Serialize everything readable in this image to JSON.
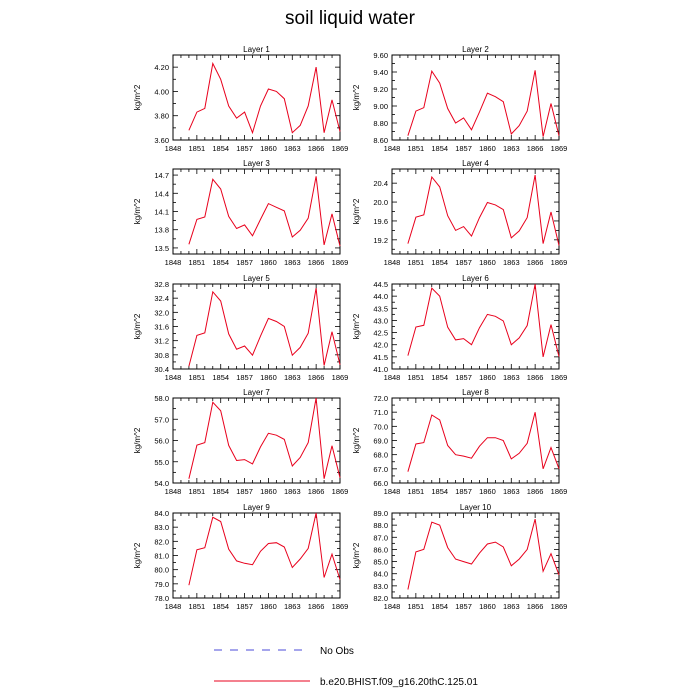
{
  "title": "soil liquid water",
  "colors": {
    "model_line": "#e8001c",
    "obs_line": "#4b4bd8",
    "axis": "#000000"
  },
  "legend": {
    "obs_label": "No Obs",
    "model_label": "b.e20.BHIST.f09_g16.20thC.125.01"
  },
  "chart_data": [
    {
      "type": "line",
      "title": "Layer 1",
      "ylabel": "kg/m^2",
      "xlim": [
        1848,
        1869
      ],
      "ylim": [
        3.6,
        4.3
      ],
      "x_ticks": [
        "1848",
        "1851",
        "1854",
        "1857",
        "1860",
        "1863",
        "1866",
        "1869"
      ],
      "y_ticks": [
        "3.60",
        "3.80",
        "4.00",
        "4.20"
      ],
      "x": [
        1850,
        1851,
        1852,
        1853,
        1854,
        1855,
        1856,
        1857,
        1858,
        1859,
        1860,
        1861,
        1862,
        1863,
        1864,
        1865,
        1866,
        1867,
        1868,
        1869
      ],
      "values": [
        3.68,
        3.83,
        3.86,
        4.23,
        4.1,
        3.88,
        3.78,
        3.83,
        3.66,
        3.88,
        4.02,
        4.0,
        3.94,
        3.66,
        3.72,
        3.88,
        4.2,
        3.66,
        3.93,
        3.67
      ]
    },
    {
      "type": "line",
      "title": "Layer 2",
      "ylabel": "kg/m^2",
      "xlim": [
        1848,
        1869
      ],
      "ylim": [
        8.6,
        9.6
      ],
      "x_ticks": [
        "1848",
        "1851",
        "1854",
        "1857",
        "1860",
        "1863",
        "1866",
        "1869"
      ],
      "y_ticks": [
        "8.60",
        "8.80",
        "9.00",
        "9.20",
        "9.40",
        "9.60"
      ],
      "x": [
        1850,
        1851,
        1852,
        1853,
        1854,
        1855,
        1856,
        1857,
        1858,
        1859,
        1860,
        1861,
        1862,
        1863,
        1864,
        1865,
        1866,
        1867,
        1868,
        1869
      ],
      "values": [
        8.65,
        8.94,
        8.98,
        9.41,
        9.27,
        8.97,
        8.8,
        8.86,
        8.72,
        8.93,
        9.15,
        9.11,
        9.05,
        8.67,
        8.77,
        8.94,
        9.42,
        8.64,
        9.03,
        8.65
      ]
    },
    {
      "type": "line",
      "title": "Layer 3",
      "ylabel": "kg/m^2",
      "xlim": [
        1848,
        1869
      ],
      "ylim": [
        13.4,
        14.8
      ],
      "x_ticks": [
        "1848",
        "1851",
        "1854",
        "1857",
        "1860",
        "1863",
        "1866",
        "1869"
      ],
      "y_ticks": [
        "13.5",
        "13.8",
        "14.1",
        "14.4",
        "14.7"
      ],
      "x": [
        1850,
        1851,
        1852,
        1853,
        1854,
        1855,
        1856,
        1857,
        1858,
        1859,
        1860,
        1861,
        1862,
        1863,
        1864,
        1865,
        1866,
        1867,
        1868,
        1869
      ],
      "values": [
        13.56,
        13.97,
        14.01,
        14.63,
        14.47,
        14.02,
        13.82,
        13.88,
        13.7,
        13.97,
        14.23,
        14.17,
        14.11,
        13.68,
        13.79,
        13.99,
        14.68,
        13.55,
        14.06,
        13.53
      ]
    },
    {
      "type": "line",
      "title": "Layer 4",
      "ylabel": "kg/m^2",
      "xlim": [
        1848,
        1869
      ],
      "ylim": [
        18.9,
        20.7
      ],
      "x_ticks": [
        "1848",
        "1851",
        "1854",
        "1857",
        "1860",
        "1863",
        "1866",
        "1869"
      ],
      "y_ticks": [
        "19.2",
        "19.6",
        "20.0",
        "20.4"
      ],
      "x": [
        1850,
        1851,
        1852,
        1853,
        1854,
        1855,
        1856,
        1857,
        1858,
        1859,
        1860,
        1861,
        1862,
        1863,
        1864,
        1865,
        1866,
        1867,
        1868,
        1869
      ],
      "values": [
        19.12,
        19.68,
        19.73,
        20.53,
        20.32,
        19.71,
        19.4,
        19.48,
        19.28,
        19.67,
        19.99,
        19.94,
        19.84,
        19.24,
        19.39,
        19.67,
        20.57,
        19.12,
        19.79,
        19.08
      ]
    },
    {
      "type": "line",
      "title": "Layer 5",
      "ylabel": "kg/m^2",
      "xlim": [
        1848,
        1869
      ],
      "ylim": [
        30.4,
        32.8
      ],
      "x_ticks": [
        "1848",
        "1851",
        "1854",
        "1857",
        "1860",
        "1863",
        "1866",
        "1869"
      ],
      "y_ticks": [
        "30.4",
        "30.8",
        "31.2",
        "31.6",
        "32.0",
        "32.4",
        "32.8"
      ],
      "x": [
        1850,
        1851,
        1852,
        1853,
        1854,
        1855,
        1856,
        1857,
        1858,
        1859,
        1860,
        1861,
        1862,
        1863,
        1864,
        1865,
        1866,
        1867,
        1868,
        1869
      ],
      "values": [
        30.48,
        31.35,
        31.42,
        32.58,
        32.32,
        31.39,
        30.96,
        31.05,
        30.79,
        31.33,
        31.83,
        31.74,
        31.6,
        30.79,
        31.01,
        31.41,
        32.68,
        30.5,
        31.45,
        30.52
      ]
    },
    {
      "type": "line",
      "title": "Layer 6",
      "ylabel": "kg/m^2",
      "xlim": [
        1848,
        1869
      ],
      "ylim": [
        41.0,
        44.5
      ],
      "x_ticks": [
        "1848",
        "1851",
        "1854",
        "1857",
        "1860",
        "1863",
        "1866",
        "1869"
      ],
      "y_ticks": [
        "41.0",
        "41.5",
        "42.0",
        "42.5",
        "43.0",
        "43.5",
        "44.0",
        "44.5"
      ],
      "x": [
        1850,
        1851,
        1852,
        1853,
        1854,
        1855,
        1856,
        1857,
        1858,
        1859,
        1860,
        1861,
        1862,
        1863,
        1864,
        1865,
        1866,
        1867,
        1868,
        1869
      ],
      "values": [
        41.55,
        42.73,
        42.8,
        44.33,
        44.0,
        42.72,
        42.2,
        42.25,
        42.0,
        42.7,
        43.25,
        43.17,
        42.98,
        42.0,
        42.28,
        42.79,
        44.49,
        41.5,
        42.83,
        41.51
      ]
    },
    {
      "type": "line",
      "title": "Layer 7",
      "ylabel": "kg/m^2",
      "xlim": [
        1848,
        1869
      ],
      "ylim": [
        54.0,
        58.0
      ],
      "x_ticks": [
        "1848",
        "1851",
        "1854",
        "1857",
        "1860",
        "1863",
        "1866",
        "1869"
      ],
      "y_ticks": [
        "54.0",
        "55.0",
        "56.0",
        "57.0",
        "58.0"
      ],
      "x": [
        1850,
        1851,
        1852,
        1853,
        1854,
        1855,
        1856,
        1857,
        1858,
        1859,
        1860,
        1861,
        1862,
        1863,
        1864,
        1865,
        1866,
        1867,
        1868,
        1869
      ],
      "values": [
        54.2,
        55.78,
        55.9,
        57.8,
        57.4,
        55.77,
        55.06,
        55.1,
        54.9,
        55.7,
        56.34,
        56.25,
        56.05,
        54.8,
        55.2,
        55.9,
        58.0,
        54.2,
        55.75,
        54.25
      ]
    },
    {
      "type": "line",
      "title": "Layer 8",
      "ylabel": "kg/m^2",
      "xlim": [
        1848,
        1869
      ],
      "ylim": [
        66.0,
        72.0
      ],
      "x_ticks": [
        "1848",
        "1851",
        "1854",
        "1857",
        "1860",
        "1863",
        "1866",
        "1869"
      ],
      "y_ticks": [
        "66.0",
        "67.0",
        "68.0",
        "69.0",
        "70.0",
        "71.0",
        "72.0"
      ],
      "x": [
        1850,
        1851,
        1852,
        1853,
        1854,
        1855,
        1856,
        1857,
        1858,
        1859,
        1860,
        1861,
        1862,
        1863,
        1864,
        1865,
        1866,
        1867,
        1868,
        1869
      ],
      "values": [
        66.8,
        68.75,
        68.85,
        70.8,
        70.45,
        68.65,
        68.0,
        67.9,
        67.75,
        68.6,
        69.2,
        69.2,
        69.0,
        67.7,
        68.1,
        68.8,
        71.0,
        67.0,
        68.5,
        67.0
      ]
    },
    {
      "type": "line",
      "title": "Layer 9",
      "ylabel": "kg/m^2",
      "xlim": [
        1848,
        1869
      ],
      "ylim": [
        78.0,
        84.0
      ],
      "x_ticks": [
        "1848",
        "1851",
        "1854",
        "1857",
        "1860",
        "1863",
        "1866",
        "1869"
      ],
      "y_ticks": [
        "78.0",
        "79.0",
        "80.0",
        "81.0",
        "82.0",
        "83.0",
        "84.0"
      ],
      "x": [
        1850,
        1851,
        1852,
        1853,
        1854,
        1855,
        1856,
        1857,
        1858,
        1859,
        1860,
        1861,
        1862,
        1863,
        1864,
        1865,
        1866,
        1867,
        1868,
        1869
      ],
      "values": [
        78.9,
        81.4,
        81.55,
        83.7,
        83.4,
        81.45,
        80.62,
        80.45,
        80.35,
        81.3,
        81.85,
        81.9,
        81.6,
        80.15,
        80.75,
        81.5,
        84.0,
        79.45,
        81.1,
        79.3
      ]
    },
    {
      "type": "line",
      "title": "Layer 10",
      "ylabel": "kg/m^2",
      "xlim": [
        1848,
        1869
      ],
      "ylim": [
        82.0,
        89.0
      ],
      "x_ticks": [
        "1848",
        "1851",
        "1854",
        "1857",
        "1860",
        "1863",
        "1866",
        "1869"
      ],
      "y_ticks": [
        "82.0",
        "83.0",
        "84.0",
        "85.0",
        "86.0",
        "87.0",
        "88.0",
        "89.0"
      ],
      "x": [
        1850,
        1851,
        1852,
        1853,
        1854,
        1855,
        1856,
        1857,
        1858,
        1859,
        1860,
        1861,
        1862,
        1863,
        1864,
        1865,
        1866,
        1867,
        1868,
        1869
      ],
      "values": [
        82.7,
        85.8,
        86.0,
        88.25,
        88.0,
        86.15,
        85.2,
        85.0,
        84.8,
        85.7,
        86.45,
        86.6,
        86.2,
        84.65,
        85.2,
        86.0,
        88.5,
        84.2,
        85.65,
        83.9
      ]
    }
  ]
}
